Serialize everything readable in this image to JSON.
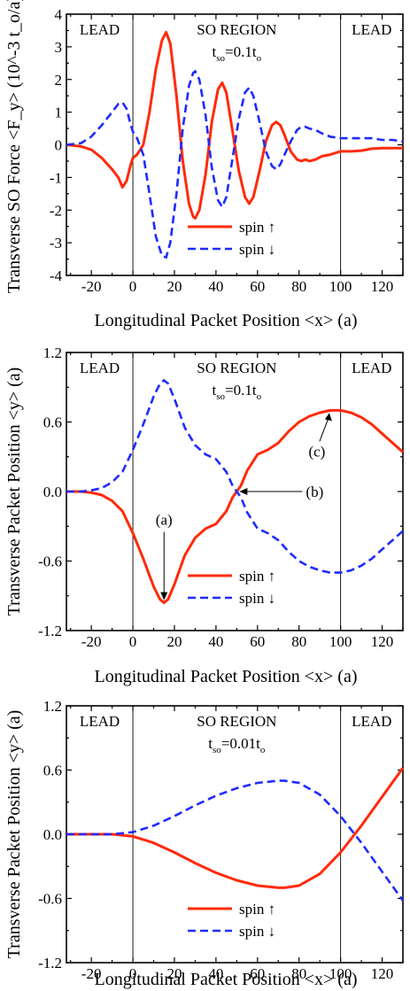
{
  "chart_data": [
    {
      "type": "line",
      "ylabel": "Transverse SO Force <F_y> (10^-3 t_o/a)",
      "xlabel": "Longitudinal Packet Position <x> (a)",
      "xlim": [
        -32,
        130
      ],
      "ylim": [
        -4,
        4
      ],
      "xticks": [
        -20,
        0,
        20,
        40,
        60,
        80,
        100,
        120
      ],
      "yticks": [
        -4,
        -3,
        -2,
        -1,
        0,
        1,
        2,
        3,
        4
      ],
      "region_labels": {
        "left": "LEAD",
        "middle": "SO REGION",
        "right": "LEAD"
      },
      "param": {
        "t": "t",
        "sub1": "so",
        "eq": "=0.1t",
        "sub2": "o"
      },
      "vlines": [
        0,
        100
      ],
      "series": [
        {
          "name": "spin ↑",
          "color": "#ff2a0a",
          "x": [
            -32,
            -25,
            -20,
            -15,
            -10,
            -7,
            -5,
            -3,
            -1,
            0,
            2,
            5,
            8,
            11,
            14,
            16,
            18,
            21,
            24,
            27,
            29,
            30,
            32,
            35,
            38,
            41,
            43,
            45,
            48,
            51,
            54,
            56,
            58,
            61,
            64,
            67,
            69,
            71,
            73,
            76,
            79,
            81,
            83,
            85,
            88,
            91,
            95,
            100,
            105,
            110,
            115,
            120,
            125,
            130
          ],
          "y": [
            0,
            -0.05,
            -0.15,
            -0.4,
            -0.75,
            -1.0,
            -1.3,
            -1.1,
            -0.6,
            -0.4,
            -0.3,
            0.0,
            1.0,
            2.3,
            3.2,
            3.45,
            3.1,
            1.5,
            -0.5,
            -1.8,
            -2.2,
            -2.25,
            -2.0,
            -0.9,
            0.7,
            1.7,
            1.9,
            1.6,
            0.4,
            -0.8,
            -1.6,
            -1.8,
            -1.6,
            -0.8,
            0.1,
            0.6,
            0.7,
            0.6,
            0.3,
            -0.2,
            -0.45,
            -0.5,
            -0.45,
            -0.5,
            -0.45,
            -0.35,
            -0.3,
            -0.2,
            -0.2,
            -0.18,
            -0.12,
            -0.1,
            -0.1,
            -0.1
          ]
        },
        {
          "name": "spin ↓",
          "color": "#1f2bff",
          "x": [
            -32,
            -25,
            -20,
            -15,
            -10,
            -7,
            -5,
            -3,
            -1,
            0,
            2,
            5,
            8,
            11,
            14,
            16,
            18,
            21,
            24,
            27,
            29,
            30,
            32,
            35,
            38,
            41,
            43,
            45,
            48,
            51,
            54,
            56,
            58,
            61,
            64,
            67,
            69,
            71,
            73,
            76,
            79,
            81,
            83,
            85,
            88,
            91,
            95,
            100,
            105,
            110,
            115,
            120,
            125,
            130
          ],
          "y": [
            0,
            0.05,
            0.25,
            0.6,
            1.0,
            1.25,
            1.3,
            1.1,
            0.6,
            0.4,
            0.2,
            -0.3,
            -1.5,
            -2.8,
            -3.4,
            -3.45,
            -3.0,
            -1.5,
            0.5,
            1.8,
            2.2,
            2.25,
            2.0,
            0.9,
            -0.7,
            -1.7,
            -1.9,
            -1.6,
            -0.4,
            0.8,
            1.6,
            1.75,
            1.5,
            0.7,
            -0.2,
            -0.65,
            -0.75,
            -0.6,
            -0.3,
            0.1,
            0.45,
            0.55,
            0.55,
            0.5,
            0.45,
            0.35,
            0.25,
            0.2,
            0.2,
            0.2,
            0.2,
            0.15,
            0.15,
            0.1
          ]
        }
      ]
    },
    {
      "type": "line",
      "ylabel": "Transverse Packet Position <y> (a)",
      "xlabel": "Longitudinal Packet Position <x> (a)",
      "xlim": [
        -32,
        130
      ],
      "ylim": [
        -1.2,
        1.2
      ],
      "xticks": [
        -20,
        0,
        20,
        40,
        60,
        80,
        100,
        120
      ],
      "yticks": [
        -1.2,
        -0.6,
        0.0,
        0.6,
        1.2
      ],
      "ytick_labels": [
        "-1.2",
        "-0.6",
        "0.0",
        "0.6",
        "1.2"
      ],
      "region_labels": {
        "left": "LEAD",
        "middle": "SO REGION",
        "right": "LEAD"
      },
      "param": {
        "t": "t",
        "sub1": "so",
        "eq": "=0.1t",
        "sub2": "o"
      },
      "vlines": [
        0,
        100
      ],
      "annotations": [
        {
          "label": "(a)",
          "x": 15,
          "y": -0.96
        },
        {
          "label": "(b)",
          "x": 50,
          "y": 0.0
        },
        {
          "label": "(c)",
          "x": 95,
          "y": 0.7
        }
      ],
      "series": [
        {
          "name": "spin ↑",
          "color": "#ff2a0a",
          "x": [
            -32,
            -25,
            -20,
            -15,
            -10,
            -5,
            0,
            5,
            10,
            13,
            15,
            17,
            20,
            25,
            30,
            35,
            40,
            45,
            48,
            50,
            52,
            55,
            60,
            65,
            70,
            75,
            80,
            85,
            90,
            95,
            100,
            105,
            110,
            115,
            120,
            125,
            130
          ],
          "y": [
            0,
            0,
            -0.01,
            -0.03,
            -0.08,
            -0.17,
            -0.36,
            -0.58,
            -0.82,
            -0.93,
            -0.96,
            -0.93,
            -0.8,
            -0.55,
            -0.4,
            -0.32,
            -0.28,
            -0.17,
            -0.05,
            0,
            0.05,
            0.18,
            0.32,
            0.36,
            0.42,
            0.52,
            0.6,
            0.65,
            0.68,
            0.7,
            0.7,
            0.68,
            0.64,
            0.58,
            0.5,
            0.42,
            0.34
          ]
        },
        {
          "name": "spin ↓",
          "color": "#1f2bff",
          "x": [
            -32,
            -25,
            -20,
            -15,
            -10,
            -5,
            0,
            5,
            10,
            13,
            15,
            17,
            20,
            25,
            30,
            35,
            40,
            45,
            48,
            50,
            52,
            55,
            60,
            65,
            70,
            75,
            80,
            85,
            90,
            95,
            100,
            105,
            110,
            115,
            120,
            125,
            130
          ],
          "y": [
            0,
            0,
            0.01,
            0.03,
            0.08,
            0.17,
            0.36,
            0.58,
            0.82,
            0.93,
            0.96,
            0.93,
            0.8,
            0.55,
            0.4,
            0.32,
            0.28,
            0.17,
            0.05,
            0,
            -0.05,
            -0.18,
            -0.32,
            -0.36,
            -0.42,
            -0.52,
            -0.6,
            -0.65,
            -0.68,
            -0.7,
            -0.7,
            -0.68,
            -0.64,
            -0.58,
            -0.5,
            -0.42,
            -0.34
          ]
        }
      ]
    },
    {
      "type": "line",
      "ylabel": "Transverse Packet Position <y> (a)",
      "xlabel": "Longitudinal Packet Position <x> (a)",
      "xlim": [
        -32,
        130
      ],
      "ylim": [
        -1.2,
        1.2
      ],
      "xticks": [
        -20,
        0,
        20,
        40,
        60,
        80,
        100,
        120
      ],
      "yticks": [
        -1.2,
        -0.6,
        0.0,
        0.6,
        1.2
      ],
      "ytick_labels": [
        "-1.2",
        "-0.6",
        "0.0",
        "0.6",
        "1.2"
      ],
      "region_labels": {
        "left": "LEAD",
        "middle": "SO REGION",
        "right": "LEAD"
      },
      "param": {
        "t": "t",
        "sub1": "so",
        "eq": "=0.01t",
        "sub2": "o"
      },
      "vlines": [
        0,
        100
      ],
      "series": [
        {
          "name": "spin ↑",
          "color": "#ff2a0a",
          "x": [
            -32,
            -20,
            -10,
            0,
            10,
            20,
            30,
            40,
            50,
            60,
            70,
            73,
            80,
            90,
            100,
            110,
            120,
            130
          ],
          "y": [
            0,
            0,
            0,
            -0.02,
            -0.08,
            -0.17,
            -0.27,
            -0.36,
            -0.43,
            -0.48,
            -0.5,
            -0.5,
            -0.48,
            -0.37,
            -0.17,
            0.08,
            0.35,
            0.62
          ]
        },
        {
          "name": "spin ↓",
          "color": "#1f2bff",
          "x": [
            -32,
            -20,
            -10,
            0,
            10,
            20,
            30,
            40,
            50,
            60,
            70,
            73,
            80,
            90,
            100,
            110,
            120,
            130
          ],
          "y": [
            0,
            0,
            0,
            0.02,
            0.08,
            0.17,
            0.27,
            0.36,
            0.43,
            0.48,
            0.5,
            0.5,
            0.48,
            0.37,
            0.17,
            -0.08,
            -0.35,
            -0.62
          ]
        }
      ]
    }
  ]
}
